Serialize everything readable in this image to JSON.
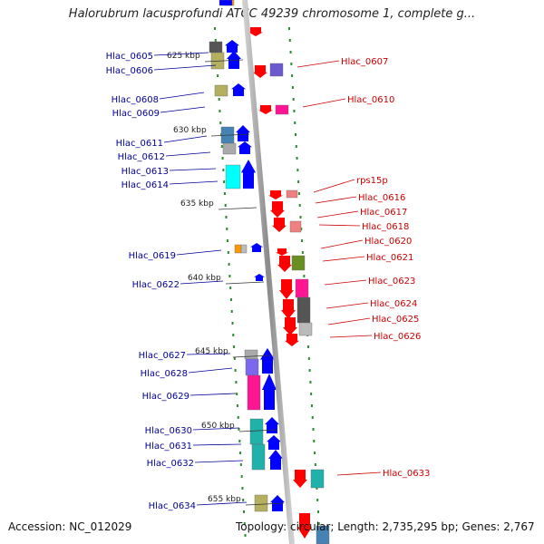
{
  "title": "Halorubrum lacusprofundi ATCC 49239 chromosome 1, complete g...",
  "footer": {
    "accession": "Accession: NC_012029",
    "summary": "Topology: circular; Length: 2,735,295 bp; Genes: 2,767"
  },
  "colors": {
    "forward_gene": "#0000ff",
    "reverse_gene": "#ff0000",
    "forward_label": "#000099",
    "reverse_label": "#cc0000",
    "backbone": "#888888",
    "tick": "#2e8b2e"
  },
  "kbp_ticks": [
    "625 kbp",
    "630 kbp",
    "635 kbp",
    "640 kbp",
    "645 kbp",
    "650 kbp",
    "655 kbp"
  ],
  "left_labels": [
    "Hlac_0605",
    "Hlac_0606",
    "Hlac_0608",
    "Hlac_0609",
    "Hlac_0611",
    "Hlac_0612",
    "Hlac_0613",
    "Hlac_0614",
    "Hlac_0619",
    "Hlac_0622",
    "Hlac_0627",
    "Hlac_0628",
    "Hlac_0629",
    "Hlac_0630",
    "Hlac_0631",
    "Hlac_0632",
    "Hlac_0634"
  ],
  "right_labels": [
    "Hlac_0607",
    "Hlac_0610",
    "rps15p",
    "Hlac_0616",
    "Hlac_0617",
    "Hlac_0618",
    "Hlac_0620",
    "Hlac_0621",
    "Hlac_0623",
    "Hlac_0624",
    "Hlac_0625",
    "Hlac_0626",
    "Hlac_0633"
  ]
}
